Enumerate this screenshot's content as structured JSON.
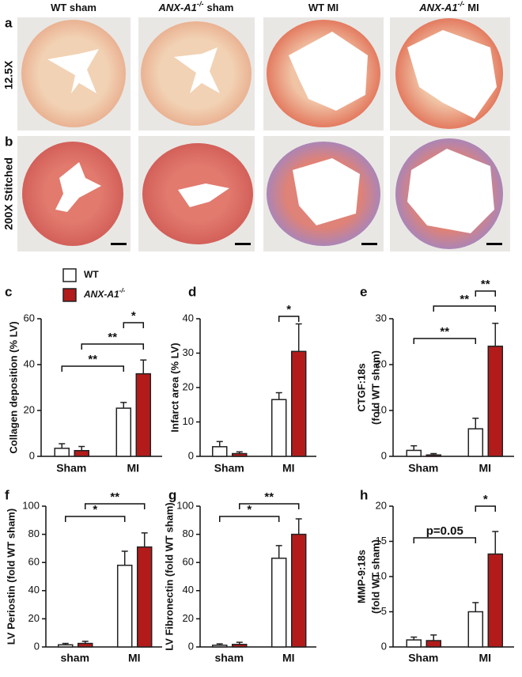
{
  "images": {
    "columns": [
      {
        "text": "WT sham"
      },
      {
        "italic": "ANX-A1",
        "sup": "-/-",
        "text": "sham"
      },
      {
        "text": "WT MI"
      },
      {
        "italic": "ANX-A1",
        "sup": "-/-",
        "text": "MI"
      }
    ],
    "rows": [
      {
        "panel": "a",
        "label": "12.5X"
      },
      {
        "panel": "b",
        "label": "200X Stitched"
      }
    ]
  },
  "legend": {
    "items": [
      {
        "name": "WT",
        "color": "#ffffff"
      },
      {
        "name": "ANX-A1",
        "sup": "-/-",
        "color": "#b31b1b"
      }
    ]
  },
  "chart_data": [
    {
      "type": "bar",
      "panel": "c",
      "ylabel": [
        "Collagen deposition (% LV)"
      ],
      "categories": [
        "Sham",
        "MI"
      ],
      "ylim": [
        0,
        60
      ],
      "yticks": [
        0,
        20,
        40,
        60
      ],
      "series": [
        {
          "color": "#ffffff",
          "values": [
            3.5,
            21
          ],
          "errors": [
            2,
            2.5
          ]
        },
        {
          "color": "#b31b1b",
          "values": [
            2.5,
            36
          ],
          "errors": [
            1.8,
            6
          ]
        }
      ],
      "annotations": [
        "*",
        "**",
        "**"
      ]
    },
    {
      "type": "bar",
      "panel": "d",
      "ylabel": [
        "Infarct area (% LV)"
      ],
      "categories": [
        "Sham",
        "MI"
      ],
      "ylim": [
        0,
        40
      ],
      "yticks": [
        0,
        10,
        20,
        30,
        40
      ],
      "series": [
        {
          "color": "#ffffff",
          "values": [
            2.8,
            16.5
          ],
          "errors": [
            1.5,
            2
          ]
        },
        {
          "color": "#b31b1b",
          "values": [
            0.8,
            30.5
          ],
          "errors": [
            0.5,
            8
          ]
        }
      ],
      "annotations": [
        "*"
      ]
    },
    {
      "type": "bar",
      "panel": "e",
      "ylabel": [
        "CTGF:18s",
        "(fold WT sham)"
      ],
      "categories": [
        "Sham",
        "MI"
      ],
      "ylim": [
        0,
        30
      ],
      "yticks": [
        0,
        10,
        20,
        30
      ],
      "series": [
        {
          "color": "#ffffff",
          "values": [
            1.3,
            6
          ],
          "errors": [
            1,
            2.3
          ]
        },
        {
          "color": "#b31b1b",
          "values": [
            0.3,
            24
          ],
          "errors": [
            0.3,
            5
          ]
        }
      ],
      "annotations": [
        "**",
        "**",
        "**"
      ]
    },
    {
      "type": "bar",
      "panel": "f",
      "ylabel": [
        "LV Periostin (fold WT sham)"
      ],
      "categories": [
        "sham",
        "MI"
      ],
      "ylim": [
        0,
        100
      ],
      "yticks": [
        0,
        20,
        40,
        60,
        80,
        100
      ],
      "series": [
        {
          "color": "#ffffff",
          "values": [
            1.5,
            58
          ],
          "errors": [
            1,
            10
          ]
        },
        {
          "color": "#b31b1b",
          "values": [
            2.5,
            71
          ],
          "errors": [
            1.5,
            10
          ]
        }
      ],
      "annotations": [
        "*",
        "**"
      ]
    },
    {
      "type": "bar",
      "panel": "g",
      "ylabel": [
        "LV Fibronectin (fold WT sham)"
      ],
      "categories": [
        "sham",
        "MI"
      ],
      "ylim": [
        0,
        100
      ],
      "yticks": [
        0,
        20,
        40,
        60,
        80,
        100
      ],
      "series": [
        {
          "color": "#ffffff",
          "values": [
            1.2,
            63
          ],
          "errors": [
            1,
            9
          ]
        },
        {
          "color": "#b31b1b",
          "values": [
            1.8,
            80
          ],
          "errors": [
            1.5,
            11
          ]
        }
      ],
      "annotations": [
        "*",
        "**"
      ]
    },
    {
      "type": "bar",
      "panel": "h",
      "ylabel": [
        "MMP-9:18s",
        "(fold WT sham)"
      ],
      "categories": [
        "Sham",
        "MI"
      ],
      "ylim": [
        0,
        20
      ],
      "yticks": [
        0,
        5,
        10,
        15,
        20
      ],
      "series": [
        {
          "color": "#ffffff",
          "values": [
            1,
            5
          ],
          "errors": [
            0.4,
            1.3
          ]
        },
        {
          "color": "#b31b1b",
          "values": [
            0.9,
            13.2
          ],
          "errors": [
            0.8,
            3.2
          ]
        }
      ],
      "annotations": [
        "p=0.05",
        "*"
      ]
    }
  ]
}
